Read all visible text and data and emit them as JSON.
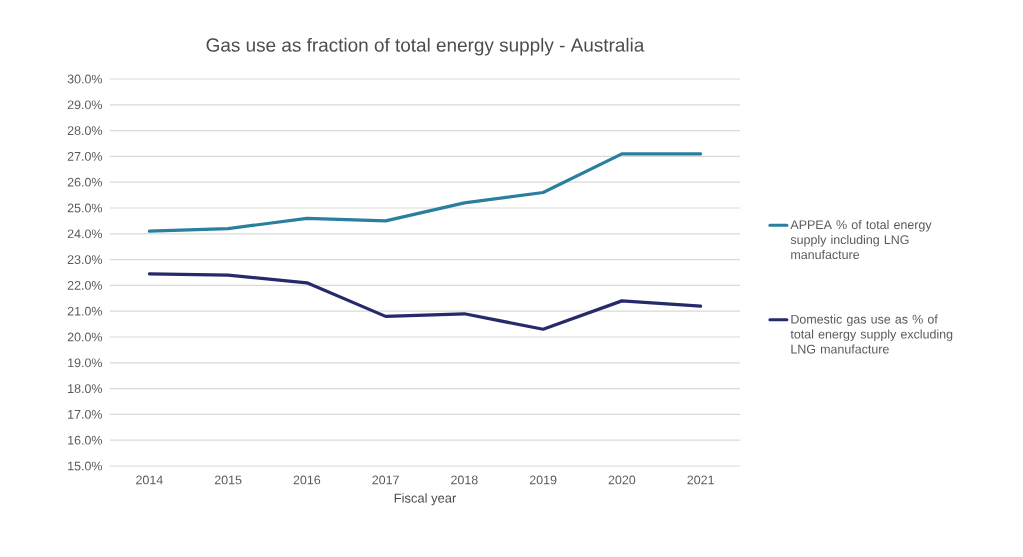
{
  "chart_data": {
    "type": "line",
    "title": "Gas use as fraction of total energy supply - Australia",
    "xlabel": "Fiscal year",
    "categories": [
      "2014",
      "2015",
      "2016",
      "2017",
      "2018",
      "2019",
      "2020",
      "2021"
    ],
    "series": [
      {
        "name": "APPEA % of total energy supply including LNG manufacture",
        "color": "#2a7f9e",
        "values": [
          24.1,
          24.2,
          24.6,
          24.5,
          25.2,
          25.6,
          27.1,
          27.1
        ]
      },
      {
        "name": "Domestic gas use as % of total energy supply excluding LNG manufacture",
        "color": "#262a6b",
        "values": [
          22.45,
          22.4,
          22.1,
          20.8,
          20.9,
          20.3,
          21.4,
          21.2
        ]
      }
    ],
    "ylim": [
      15,
      30
    ],
    "yticks": [
      {
        "value": 15,
        "label": "15.0%"
      },
      {
        "value": 16,
        "label": "16.0%"
      },
      {
        "value": 17,
        "label": "17.0%"
      },
      {
        "value": 18,
        "label": "18.0%"
      },
      {
        "value": 19,
        "label": "19.0%"
      },
      {
        "value": 20,
        "label": "20.0%"
      },
      {
        "value": 21,
        "label": "21.0%"
      },
      {
        "value": 22,
        "label": "22.0%"
      },
      {
        "value": 23,
        "label": "23.0%"
      },
      {
        "value": 24,
        "label": "24.0%"
      },
      {
        "value": 25,
        "label": "25.0%"
      },
      {
        "value": 26,
        "label": "26.0%"
      },
      {
        "value": 27,
        "label": "27.0%"
      },
      {
        "value": 28,
        "label": "28.0%"
      },
      {
        "value": 29,
        "label": "29.0%"
      },
      {
        "value": 30,
        "label": "30.0%"
      }
    ],
    "grid": "y",
    "legend": "right",
    "marker": "none",
    "line_style": "solid"
  }
}
